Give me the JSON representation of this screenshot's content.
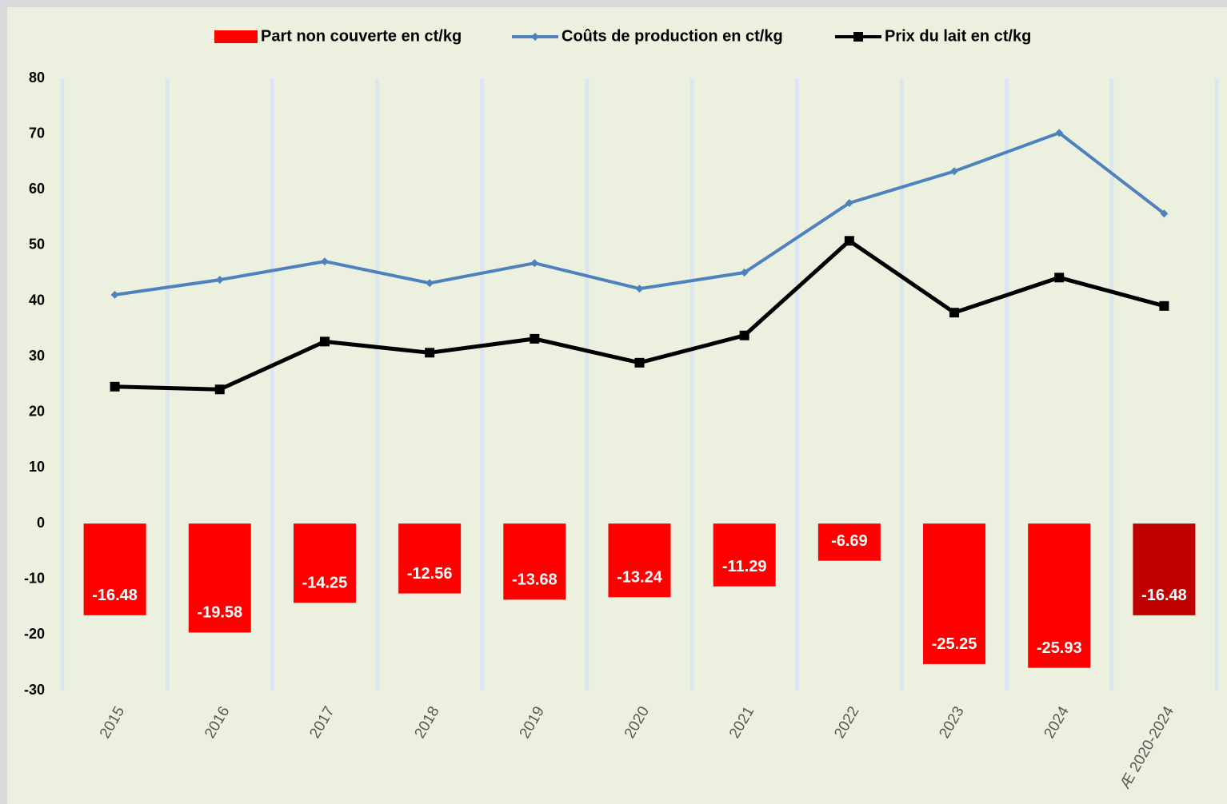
{
  "chart_data": {
    "type": "bar-line",
    "categories": [
      "2015",
      "2016",
      "2017",
      "2018",
      "2019",
      "2020",
      "2021",
      "2022",
      "2023",
      "2024",
      "Æ 2020-2024"
    ],
    "series": [
      {
        "name": "Part non couverte en ct/kg",
        "type": "bar",
        "color": "#ff0000",
        "colors": [
          "#ff0000",
          "#ff0000",
          "#ff0000",
          "#ff0000",
          "#ff0000",
          "#ff0000",
          "#ff0000",
          "#ff0000",
          "#ff0000",
          "#ff0000",
          "#c00000"
        ],
        "values": [
          -16.48,
          -19.58,
          -14.25,
          -12.56,
          -13.68,
          -13.24,
          -11.29,
          -6.69,
          -25.25,
          -25.93,
          -16.48
        ]
      },
      {
        "name": "Coûts de production en ct/kg",
        "type": "line",
        "marker": "diamond",
        "color": "#4f81bd",
        "values": [
          41.1,
          43.8,
          47.1,
          43.2,
          46.8,
          42.2,
          45.1,
          57.6,
          63.3,
          70.2,
          55.7
        ]
      },
      {
        "name": "Prix du lait en ct/kg",
        "type": "line",
        "marker": "square",
        "color": "#000000",
        "values": [
          24.6,
          24.1,
          32.7,
          30.7,
          33.2,
          28.9,
          33.8,
          50.8,
          37.9,
          44.2,
          39.1
        ]
      }
    ],
    "ylim": [
      -30,
      80
    ],
    "yticks": [
      -30,
      -20,
      -10,
      0,
      10,
      20,
      30,
      40,
      50,
      60,
      70,
      80
    ],
    "grid": "vertical",
    "legend": "top"
  }
}
